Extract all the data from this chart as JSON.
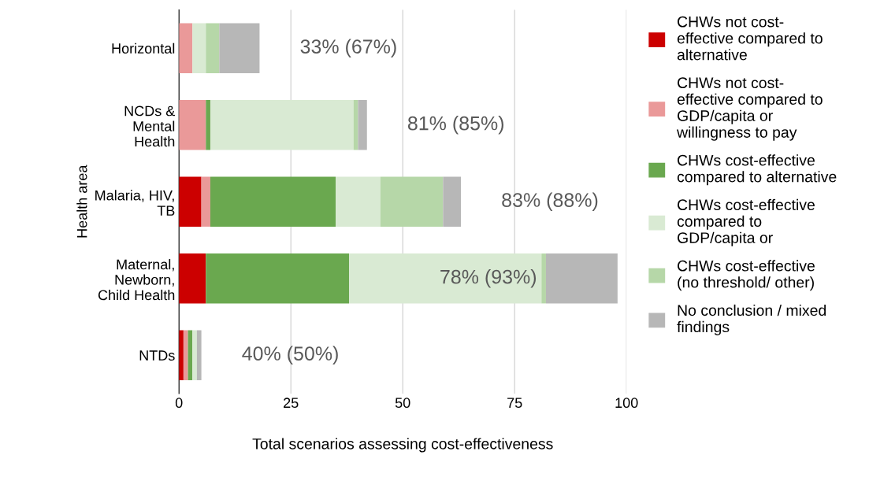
{
  "chart_data": {
    "type": "bar",
    "orientation": "horizontal",
    "stacked": true,
    "categories": [
      "Horizontal",
      "NCDs &\nMental\nHealth",
      "Malaria, HIV,\nTB",
      "Maternal,\nNewborn,\nChild Health",
      "NTDs"
    ],
    "series": [
      {
        "name": "CHWs not cost-\neffective compared to\nalternative",
        "color": "#cc0000",
        "values": [
          0,
          0,
          5,
          6,
          1
        ]
      },
      {
        "name": "CHWs not cost-\neffective compared to\nGDP/capita or\nwillingness to pay",
        "color": "#ea9999",
        "values": [
          3,
          6,
          2,
          0,
          1
        ]
      },
      {
        "name": "CHWs cost-effective\ncompared to alternative",
        "color": "#6aa84f",
        "values": [
          0,
          1,
          28,
          32,
          1
        ]
      },
      {
        "name": "CHWs cost-effective\ncompared to\nGDP/capita or",
        "color": "#d9ead3",
        "values": [
          3,
          32,
          10,
          43,
          1
        ]
      },
      {
        "name": "CHWs cost-effective\n(no threshold/ other)",
        "color": "#b6d7a8",
        "values": [
          3,
          1,
          14,
          1,
          0
        ]
      },
      {
        "name": "No conclusion / mixed\nfindings",
        "color": "#b7b7b7",
        "values": [
          9,
          2,
          4,
          16,
          1
        ]
      }
    ],
    "xlim": [
      0,
      100
    ],
    "xticks": [
      0,
      25,
      50,
      75,
      100
    ],
    "grid": "x",
    "legend": "right",
    "xlabel": "Total scenarios assessing cost-effectiveness",
    "ylabel": "Health area",
    "annotations": [
      "33% (67%)",
      "81% (85%)",
      "83% (88%)",
      "78% (93%)",
      "40% (50%)"
    ]
  }
}
